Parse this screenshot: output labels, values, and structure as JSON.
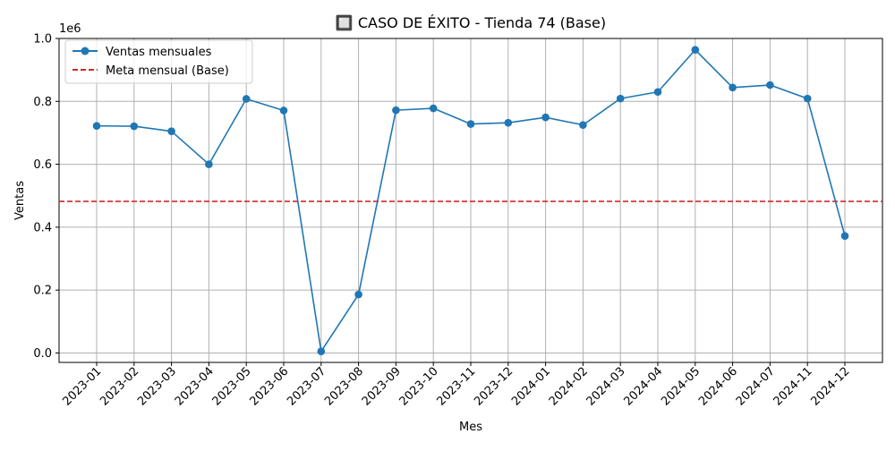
{
  "chart_data": {
    "type": "line",
    "title": "🔲 CASO DE ÉXITO - Tienda 74 (Base)",
    "xlabel": "Mes",
    "ylabel": "Ventas",
    "y_multiplier_label": "1e6",
    "categories": [
      "2023-01",
      "2023-02",
      "2023-03",
      "2023-04",
      "2023-05",
      "2023-06",
      "2023-07",
      "2023-08",
      "2023-09",
      "2023-10",
      "2023-11",
      "2023-12",
      "2024-01",
      "2024-02",
      "2024-03",
      "2024-04",
      "2024-05",
      "2024-06",
      "2024-07",
      "2024-11",
      "2024-12"
    ],
    "series": [
      {
        "name": "Ventas mensuales",
        "color": "#1f77b4",
        "values": [
          722000,
          721000,
          705000,
          600000,
          808000,
          771000,
          5000,
          186000,
          772000,
          778000,
          728000,
          732000,
          749000,
          725000,
          809000,
          830000,
          964000,
          844000,
          852000,
          809000,
          372000
        ]
      }
    ],
    "reference_lines": [
      {
        "name": "Meta mensual (Base)",
        "value": 482000,
        "color": "#d62728",
        "style": "dashed"
      }
    ],
    "y_ticks": [
      0,
      200000,
      400000,
      600000,
      800000,
      1000000
    ],
    "y_tick_labels": [
      "0.0",
      "0.2",
      "0.4",
      "0.6",
      "0.8",
      "1.0"
    ],
    "ylim": [
      -30000,
      1000000
    ],
    "grid": true,
    "legend_position": "top-left"
  }
}
